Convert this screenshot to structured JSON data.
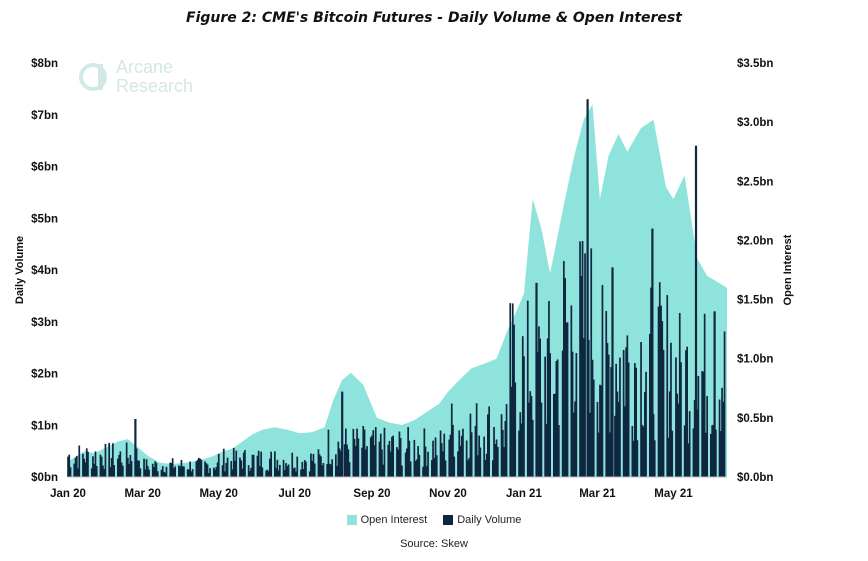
{
  "title": "Figure 2: CME's Bitcoin Futures - Daily Volume & Open Interest",
  "watermark": {
    "line1": "Arcane",
    "line2": "Research"
  },
  "source": "Source: Skew",
  "colors": {
    "open_interest": "#8ee3dc",
    "daily_volume": "#0f2740",
    "watermark": "#d3e7e6"
  },
  "legend": [
    {
      "label": "Open Interest",
      "color": "#8ee3dc"
    },
    {
      "label": "Daily Volume",
      "color": "#0f2740"
    }
  ],
  "chart_data": {
    "type": "bar",
    "title": "Figure 2: CME's Bitcoin Futures - Daily Volume & Open Interest",
    "xlabel": "",
    "ylabel": "Daily Volume",
    "ylabel_right": "Open Interest",
    "ylim": [
      0,
      8
    ],
    "ylim_right": [
      0,
      3.5
    ],
    "y_ticks": [
      "$0bn",
      "$1bn",
      "$2bn",
      "$3bn",
      "$4bn",
      "$5bn",
      "$6bn",
      "$7bn",
      "$8bn"
    ],
    "y_ticks_right": [
      "$0.0bn",
      "$0.5bn",
      "$1.0bn",
      "$1.5bn",
      "$2.0bn",
      "$2.5bn",
      "$3.0bn",
      "$3.5bn"
    ],
    "x_ticks": [
      "Jan 20",
      "Mar 20",
      "May 20",
      "Jul 20",
      "Sep 20",
      "Nov 20",
      "Jan 21",
      "Mar 21",
      "May 21"
    ],
    "x_range": [
      "2020-01-01",
      "2021-06-13"
    ],
    "grid": false,
    "legend_position": "bottom",
    "series": [
      {
        "name": "Open Interest",
        "type": "area",
        "axis": "right",
        "unit": "$bn",
        "points": [
          [
            "2020-01-01",
            0.13
          ],
          [
            "2020-01-08",
            0.18
          ],
          [
            "2020-01-15",
            0.22
          ],
          [
            "2020-01-22",
            0.2
          ],
          [
            "2020-02-01",
            0.25
          ],
          [
            "2020-02-10",
            0.3
          ],
          [
            "2020-02-18",
            0.32
          ],
          [
            "2020-02-25",
            0.26
          ],
          [
            "2020-03-05",
            0.18
          ],
          [
            "2020-03-15",
            0.12
          ],
          [
            "2020-03-25",
            0.11
          ],
          [
            "2020-04-05",
            0.12
          ],
          [
            "2020-04-15",
            0.14
          ],
          [
            "2020-04-25",
            0.17
          ],
          [
            "2020-05-05",
            0.22
          ],
          [
            "2020-05-12",
            0.24
          ],
          [
            "2020-05-20",
            0.3
          ],
          [
            "2020-05-28",
            0.36
          ],
          [
            "2020-06-05",
            0.4
          ],
          [
            "2020-06-15",
            0.42
          ],
          [
            "2020-06-25",
            0.4
          ],
          [
            "2020-07-05",
            0.37
          ],
          [
            "2020-07-15",
            0.38
          ],
          [
            "2020-07-25",
            0.42
          ],
          [
            "2020-08-01",
            0.65
          ],
          [
            "2020-08-08",
            0.82
          ],
          [
            "2020-08-15",
            0.88
          ],
          [
            "2020-08-25",
            0.78
          ],
          [
            "2020-09-05",
            0.5
          ],
          [
            "2020-09-15",
            0.46
          ],
          [
            "2020-09-25",
            0.44
          ],
          [
            "2020-10-05",
            0.48
          ],
          [
            "2020-10-15",
            0.55
          ],
          [
            "2020-10-25",
            0.62
          ],
          [
            "2020-11-01",
            0.72
          ],
          [
            "2020-11-10",
            0.82
          ],
          [
            "2020-11-20",
            0.92
          ],
          [
            "2020-12-01",
            0.96
          ],
          [
            "2020-12-10",
            1.0
          ],
          [
            "2020-12-18",
            1.22
          ],
          [
            "2020-12-25",
            1.38
          ],
          [
            "2021-01-01",
            1.55
          ],
          [
            "2021-01-08",
            2.35
          ],
          [
            "2021-01-15",
            2.1
          ],
          [
            "2021-01-22",
            1.72
          ],
          [
            "2021-02-01",
            2.25
          ],
          [
            "2021-02-10",
            2.7
          ],
          [
            "2021-02-18",
            3.02
          ],
          [
            "2021-02-25",
            3.15
          ],
          [
            "2021-03-03",
            2.35
          ],
          [
            "2021-03-10",
            2.72
          ],
          [
            "2021-03-18",
            2.9
          ],
          [
            "2021-03-25",
            2.75
          ],
          [
            "2021-04-05",
            2.95
          ],
          [
            "2021-04-15",
            3.02
          ],
          [
            "2021-04-25",
            2.45
          ],
          [
            "2021-05-01",
            2.35
          ],
          [
            "2021-05-10",
            2.55
          ],
          [
            "2021-05-20",
            1.85
          ],
          [
            "2021-05-28",
            1.7
          ],
          [
            "2021-06-05",
            1.65
          ],
          [
            "2021-06-13",
            1.6
          ]
        ]
      },
      {
        "name": "Daily Volume",
        "type": "bar",
        "axis": "left",
        "unit": "$bn",
        "periods": [
          {
            "from": "2020-01-01",
            "to": "2020-02-28",
            "value": 0.5
          },
          {
            "from": "2020-03-01",
            "to": "2020-04-30",
            "value": 0.28
          },
          {
            "from": "2020-05-01",
            "to": "2020-07-25",
            "value": 0.42
          },
          {
            "from": "2020-07-26",
            "to": "2020-08-31",
            "value": 0.75
          },
          {
            "from": "2020-09-01",
            "to": "2020-10-31",
            "value": 0.72
          },
          {
            "from": "2020-11-01",
            "to": "2020-12-20",
            "value": 1.15
          },
          {
            "from": "2020-12-21",
            "to": "2021-01-31",
            "value": 2.6
          },
          {
            "from": "2021-02-01",
            "to": "2021-02-28",
            "value": 3.6
          },
          {
            "from": "2021-03-01",
            "to": "2021-04-30",
            "value": 2.8
          },
          {
            "from": "2021-05-01",
            "to": "2021-06-13",
            "value": 2.45
          }
        ],
        "peaks": [
          [
            "2020-02-24",
            1.12
          ],
          [
            "2020-08-08",
            1.65
          ],
          [
            "2021-01-11",
            3.75
          ],
          [
            "2021-02-21",
            7.3
          ],
          [
            "2021-03-13",
            4.05
          ],
          [
            "2021-04-14",
            4.8
          ],
          [
            "2021-05-19",
            6.4
          ],
          [
            "2021-06-03",
            3.2
          ]
        ]
      }
    ]
  }
}
